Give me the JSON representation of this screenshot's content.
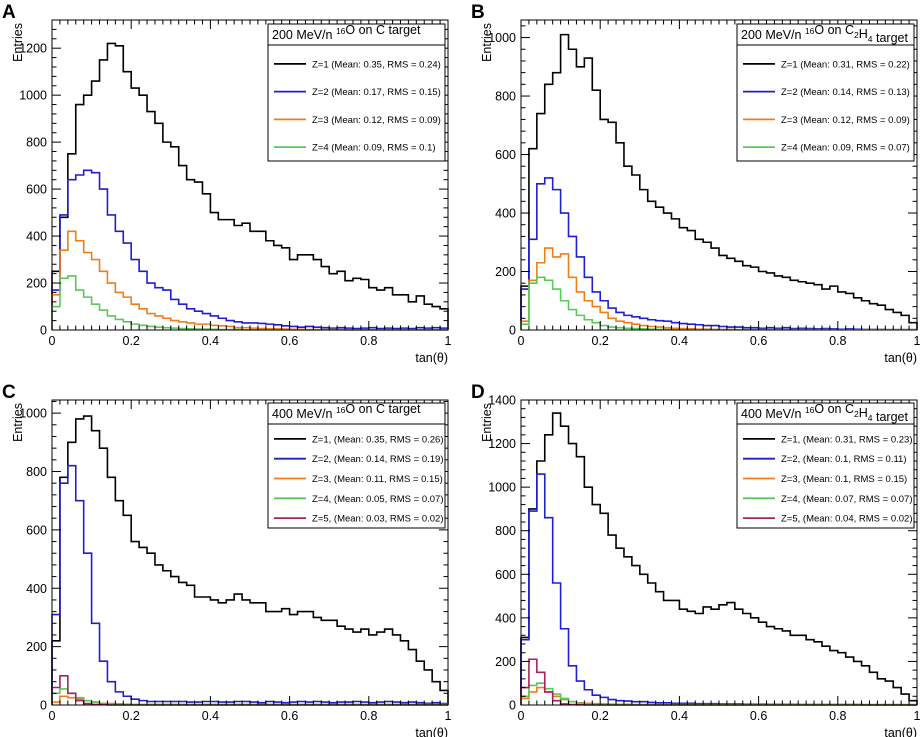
{
  "colors": {
    "Z=1": "#000000",
    "Z=2": "#1f1fd1",
    "Z=3": "#f07c1a",
    "Z=4": "#5ac85a",
    "Z=5": "#a8235a"
  },
  "chart_data": [
    {
      "panel": "A",
      "type": "histogram",
      "title": {
        "pre": "200 MeV/n ",
        "sup": "16",
        "post": "O on C target",
        "sub": "",
        "tail": ""
      },
      "xlabel": "tan(θ)",
      "ylabel": "Entries",
      "xlim": [
        0,
        1
      ],
      "ylim": [
        0,
        1320
      ],
      "xticks": [
        0,
        0.2,
        0.4,
        0.6,
        0.8,
        1
      ],
      "xtick_labels": [
        "0",
        "0.2",
        "0.4",
        "0.6",
        "0.8",
        "1"
      ],
      "yticks": [
        0,
        200,
        400,
        600,
        800,
        1000,
        1200
      ],
      "bin_width": 0.02,
      "series": [
        {
          "name": "Z=1",
          "label": "Z=1 (Mean: 0.35, RMS = 0.24)",
          "values": [
            250,
            480,
            750,
            960,
            1000,
            1060,
            1150,
            1220,
            1210,
            1100,
            1030,
            1000,
            930,
            880,
            800,
            780,
            700,
            640,
            630,
            580,
            500,
            470,
            470,
            445,
            455,
            420,
            420,
            380,
            360,
            350,
            300,
            320,
            320,
            300,
            270,
            240,
            250,
            210,
            220,
            215,
            180,
            170,
            180,
            150,
            150,
            120,
            145,
            110,
            100,
            90
          ]
        },
        {
          "name": "Z=2",
          "label": "Z=2 (Mean: 0.17, RMS = 0.15)",
          "values": [
            170,
            490,
            640,
            660,
            680,
            670,
            600,
            490,
            420,
            370,
            300,
            250,
            200,
            180,
            170,
            130,
            110,
            90,
            80,
            70,
            60,
            50,
            40,
            35,
            30,
            30,
            28,
            25,
            22,
            18,
            15,
            12,
            15,
            12,
            10,
            8,
            10,
            8,
            6,
            8,
            10,
            6,
            8,
            6,
            8,
            6,
            10,
            8,
            10,
            8
          ]
        },
        {
          "name": "Z=3",
          "label": "Z=3 (Mean: 0.12, RMS = 0.09)",
          "values": [
            150,
            340,
            420,
            380,
            330,
            300,
            250,
            200,
            160,
            140,
            110,
            90,
            70,
            60,
            50,
            40,
            35,
            30,
            25,
            25,
            20,
            18,
            15,
            10,
            10,
            8,
            6,
            5,
            5,
            4,
            3,
            3,
            2,
            2,
            2,
            2,
            2,
            1,
            1,
            1,
            1,
            1,
            1,
            1,
            1,
            1,
            1,
            1,
            1,
            1
          ]
        },
        {
          "name": "Z=4",
          "label": "Z=4 (Mean: 0.09, RMS = 0.1)",
          "values": [
            100,
            220,
            230,
            170,
            140,
            110,
            85,
            60,
            45,
            35,
            25,
            20,
            15,
            12,
            10,
            8,
            6,
            5,
            4,
            4,
            3,
            2,
            2,
            2,
            1,
            1,
            1,
            1,
            1,
            1,
            1,
            1,
            1,
            1,
            1,
            1,
            1,
            1,
            1,
            1,
            1,
            1,
            1,
            1,
            1,
            1,
            1,
            1,
            1,
            1
          ]
        }
      ]
    },
    {
      "panel": "B",
      "type": "histogram",
      "title": {
        "pre": "200 MeV/n ",
        "sup": "16",
        "post": "O on C",
        "sub": "2",
        "mid": "H",
        "sub2": "4",
        "tail": " target"
      },
      "xlabel": "tan(θ)",
      "ylabel": "Entries",
      "xlim": [
        0,
        1
      ],
      "ylim": [
        0,
        1060
      ],
      "xticks": [
        0,
        0.2,
        0.4,
        0.6,
        0.8,
        1
      ],
      "xtick_labels": [
        "0",
        "0.2",
        "0.4",
        "0.6",
        "0.8",
        "1"
      ],
      "yticks": [
        0,
        200,
        400,
        600,
        800,
        1000
      ],
      "bin_width": 0.02,
      "series": [
        {
          "name": "Z=1",
          "label": "Z=1 (Mean: 0.31, RMS = 0.22)",
          "values": [
            150,
            620,
            740,
            840,
            880,
            1010,
            960,
            900,
            930,
            820,
            720,
            710,
            640,
            560,
            530,
            480,
            440,
            420,
            400,
            380,
            350,
            340,
            310,
            300,
            280,
            255,
            245,
            235,
            220,
            215,
            200,
            195,
            185,
            180,
            170,
            165,
            160,
            155,
            140,
            150,
            130,
            125,
            110,
            100,
            90,
            85,
            70,
            60,
            50,
            25
          ]
        },
        {
          "name": "Z=2",
          "label": "Z=2 (Mean: 0.14, RMS = 0.13)",
          "values": [
            140,
            310,
            500,
            520,
            480,
            400,
            320,
            250,
            180,
            130,
            100,
            75,
            60,
            50,
            45,
            40,
            35,
            32,
            30,
            25,
            22,
            20,
            18,
            15,
            15,
            12,
            10,
            10,
            8,
            8,
            6,
            8,
            6,
            8,
            5,
            6,
            5,
            4,
            5,
            4,
            3,
            4,
            3,
            2,
            2,
            2,
            1,
            1,
            1,
            1
          ]
        },
        {
          "name": "Z=3",
          "label": "Z=3 (Mean: 0.12, RMS = 0.09)",
          "values": [
            30,
            170,
            230,
            280,
            250,
            260,
            180,
            130,
            100,
            80,
            60,
            40,
            30,
            25,
            20,
            15,
            12,
            10,
            8,
            6,
            5,
            4,
            3,
            3,
            2,
            2,
            2,
            1,
            1,
            1,
            1,
            1,
            1,
            1,
            1,
            1,
            1,
            1,
            1,
            1,
            1,
            1,
            1,
            1,
            1,
            1,
            1,
            1,
            1,
            1
          ]
        },
        {
          "name": "Z=4",
          "label": "Z=4 (Mean: 0.09, RMS = 0.07)",
          "values": [
            20,
            160,
            180,
            170,
            140,
            100,
            70,
            50,
            35,
            25,
            15,
            10,
            8,
            6,
            5,
            4,
            3,
            2,
            2,
            1,
            1,
            1,
            1,
            1,
            1,
            1,
            1,
            1,
            1,
            1,
            1,
            1,
            1,
            1,
            1,
            1,
            1,
            1,
            1,
            1,
            1,
            1,
            1,
            1,
            1,
            1,
            1,
            1,
            1,
            1
          ]
        }
      ]
    },
    {
      "panel": "C",
      "type": "histogram",
      "title": {
        "pre": "400 MeV/n ",
        "sup": "16",
        "post": "O on C target",
        "sub": "",
        "tail": ""
      },
      "xlabel": "tan(θ)",
      "ylabel": "Entries",
      "xlim": [
        0,
        1
      ],
      "ylim": [
        0,
        1045
      ],
      "xticks": [
        0,
        0.2,
        0.4,
        0.6,
        0.8,
        1
      ],
      "xtick_labels": [
        "0",
        "0.2",
        "0.4",
        "0.6",
        "0.8",
        "1"
      ],
      "yticks": [
        0,
        200,
        400,
        600,
        800,
        1000
      ],
      "bin_width": 0.02,
      "series": [
        {
          "name": "Z=1",
          "label": "Z=1, (Mean: 0.35, RMS = 0.26)",
          "values": [
            220,
            780,
            900,
            980,
            990,
            940,
            880,
            780,
            700,
            650,
            560,
            540,
            520,
            480,
            460,
            440,
            420,
            410,
            370,
            370,
            360,
            350,
            360,
            380,
            360,
            350,
            350,
            320,
            320,
            330,
            310,
            320,
            320,
            300,
            290,
            290,
            270,
            260,
            250,
            260,
            240,
            250,
            260,
            240,
            220,
            190,
            150,
            120,
            80,
            50
          ]
        },
        {
          "name": "Z=2",
          "label": "Z=2, (Mean: 0.14, RMS = 0.19)",
          "values": [
            310,
            760,
            820,
            700,
            520,
            280,
            150,
            80,
            45,
            30,
            20,
            15,
            12,
            12,
            12,
            12,
            12,
            10,
            10,
            12,
            12,
            10,
            10,
            12,
            12,
            10,
            8,
            12,
            10,
            8,
            10,
            12,
            10,
            12,
            10,
            8,
            10,
            10,
            12,
            10,
            8,
            10,
            12,
            10,
            8,
            10,
            8,
            6,
            8,
            5
          ]
        },
        {
          "name": "Z=3",
          "label": "Z=3, (Mean: 0.11, RMS = 0.15)",
          "values": [
            10,
            30,
            25,
            20,
            15,
            10,
            6,
            5,
            4,
            3,
            2,
            2,
            2,
            2,
            2,
            2,
            2,
            2,
            2,
            2,
            2,
            2,
            2,
            2,
            2,
            2,
            2,
            2,
            2,
            2,
            2,
            2,
            2,
            2,
            2,
            2,
            2,
            2,
            2,
            2,
            2,
            2,
            2,
            2,
            2,
            2,
            2,
            2,
            2,
            2
          ]
        },
        {
          "name": "Z=4",
          "label": "Z=4, (Mean: 0.05, RMS = 0.07)",
          "values": [
            40,
            55,
            40,
            25,
            15,
            10,
            5,
            3,
            2,
            1,
            1,
            1,
            1,
            1,
            1,
            1,
            1,
            1,
            1,
            1,
            1,
            1,
            1,
            1,
            1,
            1,
            1,
            1,
            1,
            1,
            1,
            1,
            1,
            1,
            1,
            1,
            1,
            1,
            1,
            1,
            1,
            1,
            1,
            1,
            1,
            1,
            1,
            1,
            1,
            1
          ]
        },
        {
          "name": "Z=5",
          "label": "Z=5, (Mean: 0.03, RMS = 0.02)",
          "values": [
            60,
            100,
            40,
            15,
            5,
            2,
            1,
            0,
            0,
            0,
            0,
            0,
            0,
            0,
            0,
            0,
            0,
            0,
            0,
            0,
            0,
            0,
            0,
            0,
            0,
            0,
            0,
            0,
            0,
            0,
            0,
            0,
            0,
            0,
            0,
            0,
            0,
            0,
            0,
            0,
            0,
            0,
            0,
            0,
            0,
            0,
            0,
            0,
            0,
            0
          ]
        }
      ]
    },
    {
      "panel": "D",
      "type": "histogram",
      "title": {
        "pre": "400 MeV/n ",
        "sup": "16",
        "post": "O on C",
        "sub": "2",
        "mid": "H",
        "sub2": "4",
        "tail": " target"
      },
      "xlabel": "tan(θ)",
      "ylabel": "Entries",
      "xlim": [
        0,
        1
      ],
      "ylim": [
        0,
        1400
      ],
      "xticks": [
        0,
        0.2,
        0.4,
        0.6,
        0.8,
        1
      ],
      "xtick_labels": [
        "0",
        "0.2",
        "0.4",
        "0.6",
        "0.8",
        "1"
      ],
      "yticks": [
        0,
        200,
        400,
        600,
        800,
        1000,
        1200,
        1400
      ],
      "bin_width": 0.02,
      "series": [
        {
          "name": "Z=1",
          "label": "Z=1, (Mean: 0.31, RMS = 0.23)",
          "values": [
            310,
            900,
            1120,
            1240,
            1340,
            1280,
            1200,
            1140,
            1000,
            920,
            880,
            780,
            720,
            680,
            640,
            600,
            560,
            520,
            480,
            480,
            440,
            430,
            420,
            450,
            440,
            460,
            470,
            440,
            420,
            400,
            380,
            360,
            350,
            340,
            320,
            320,
            300,
            290,
            270,
            250,
            240,
            220,
            200,
            180,
            150,
            120,
            110,
            80,
            50,
            20
          ]
        },
        {
          "name": "Z=2",
          "label": "Z=2, (Mean: 0.1, RMS = 0.11)",
          "values": [
            300,
            890,
            1060,
            860,
            560,
            350,
            180,
            110,
            70,
            45,
            35,
            25,
            20,
            18,
            15,
            15,
            12,
            10,
            10,
            8,
            8,
            8,
            6,
            6,
            6,
            5,
            5,
            5,
            4,
            4,
            4,
            3,
            3,
            3,
            3,
            2,
            2,
            2,
            2,
            2,
            2,
            2,
            2,
            1,
            1,
            1,
            1,
            1,
            1,
            1
          ]
        },
        {
          "name": "Z=3",
          "label": "Z=3, (Mean: 0.1, RMS = 0.15)",
          "values": [
            30,
            60,
            80,
            60,
            40,
            25,
            15,
            10,
            8,
            6,
            5,
            4,
            3,
            3,
            2,
            2,
            2,
            2,
            2,
            2,
            2,
            2,
            2,
            2,
            2,
            2,
            2,
            2,
            2,
            2,
            2,
            2,
            2,
            2,
            2,
            2,
            2,
            2,
            2,
            2,
            2,
            2,
            2,
            2,
            2,
            2,
            2,
            2,
            2,
            2
          ]
        },
        {
          "name": "Z=4",
          "label": "Z=4, (Mean: 0.07, RMS = 0.07)",
          "values": [
            40,
            90,
            100,
            75,
            50,
            30,
            15,
            8,
            5,
            3,
            2,
            1,
            1,
            1,
            1,
            1,
            1,
            1,
            1,
            1,
            1,
            1,
            1,
            1,
            1,
            1,
            1,
            1,
            1,
            1,
            1,
            1,
            1,
            1,
            1,
            1,
            1,
            1,
            1,
            1,
            1,
            1,
            1,
            1,
            1,
            1,
            1,
            1,
            1,
            1
          ]
        },
        {
          "name": "Z=5",
          "label": "Z=5, (Mean: 0.04, RMS = 0.02)",
          "values": [
            80,
            210,
            150,
            60,
            20,
            5,
            2,
            1,
            0,
            0,
            0,
            0,
            0,
            0,
            0,
            0,
            0,
            0,
            0,
            0,
            0,
            0,
            0,
            0,
            0,
            0,
            0,
            0,
            0,
            0,
            0,
            0,
            0,
            0,
            0,
            0,
            0,
            0,
            0,
            0,
            0,
            0,
            0,
            0,
            0,
            0,
            0,
            0,
            0,
            0
          ]
        }
      ]
    }
  ]
}
